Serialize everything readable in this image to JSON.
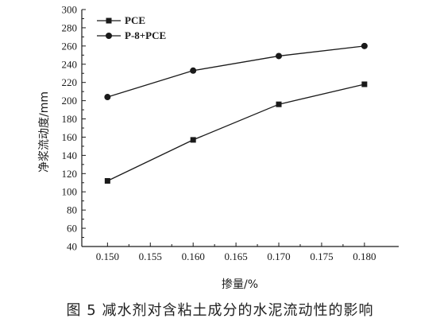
{
  "caption": "图 5   减水剂对含粘土成分的水泥流动性的影响",
  "chart_data": {
    "type": "line",
    "xlabel": "掺量/%",
    "ylabel": "净浆流动度/mm",
    "xlim": [
      0.147,
      0.184
    ],
    "ylim": [
      40,
      300
    ],
    "x_ticks": [
      "0.150",
      "0.155",
      "0.160",
      "0.165",
      "0.170",
      "0.175",
      "0.180"
    ],
    "y_ticks": [
      "40",
      "60",
      "80",
      "100",
      "120",
      "140",
      "160",
      "180",
      "200",
      "220",
      "240",
      "260",
      "280",
      "300"
    ],
    "x": [
      0.15,
      0.16,
      0.17,
      0.18
    ],
    "series": [
      {
        "name": "PCE",
        "marker": "square",
        "values": [
          112,
          157,
          196,
          218
        ]
      },
      {
        "name": "P-8+PCE",
        "marker": "circle",
        "values": [
          204,
          233,
          249,
          260
        ]
      }
    ],
    "legend_position": "top-left",
    "grid": false,
    "colors": {
      "line": "#1a1a1a",
      "axis": "#1a1a1a"
    }
  }
}
